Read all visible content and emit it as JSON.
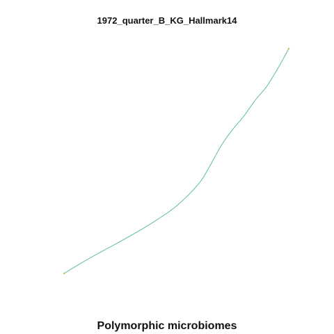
{
  "chart_data": {
    "type": "line",
    "title": "1972_quarter_B_KG_Hallmark14",
    "xlabel": "Polymorphic microbiomes",
    "ylabel": "",
    "grid": false,
    "axes_visible": false,
    "xlim": [
      0,
      1
    ],
    "ylim": [
      0,
      1
    ],
    "series": [
      {
        "color": "#5fbf8f",
        "end_color": "#b5c84a",
        "x": [
          0.0,
          0.1,
          0.2,
          0.3,
          0.4,
          0.5,
          0.6,
          0.65,
          0.7,
          0.75,
          0.8,
          0.85,
          0.9,
          0.95,
          1.0
        ],
        "y": [
          0.0,
          0.06,
          0.115,
          0.17,
          0.23,
          0.3,
          0.4,
          0.48,
          0.57,
          0.64,
          0.7,
          0.77,
          0.83,
          0.91,
          1.0
        ]
      }
    ]
  }
}
